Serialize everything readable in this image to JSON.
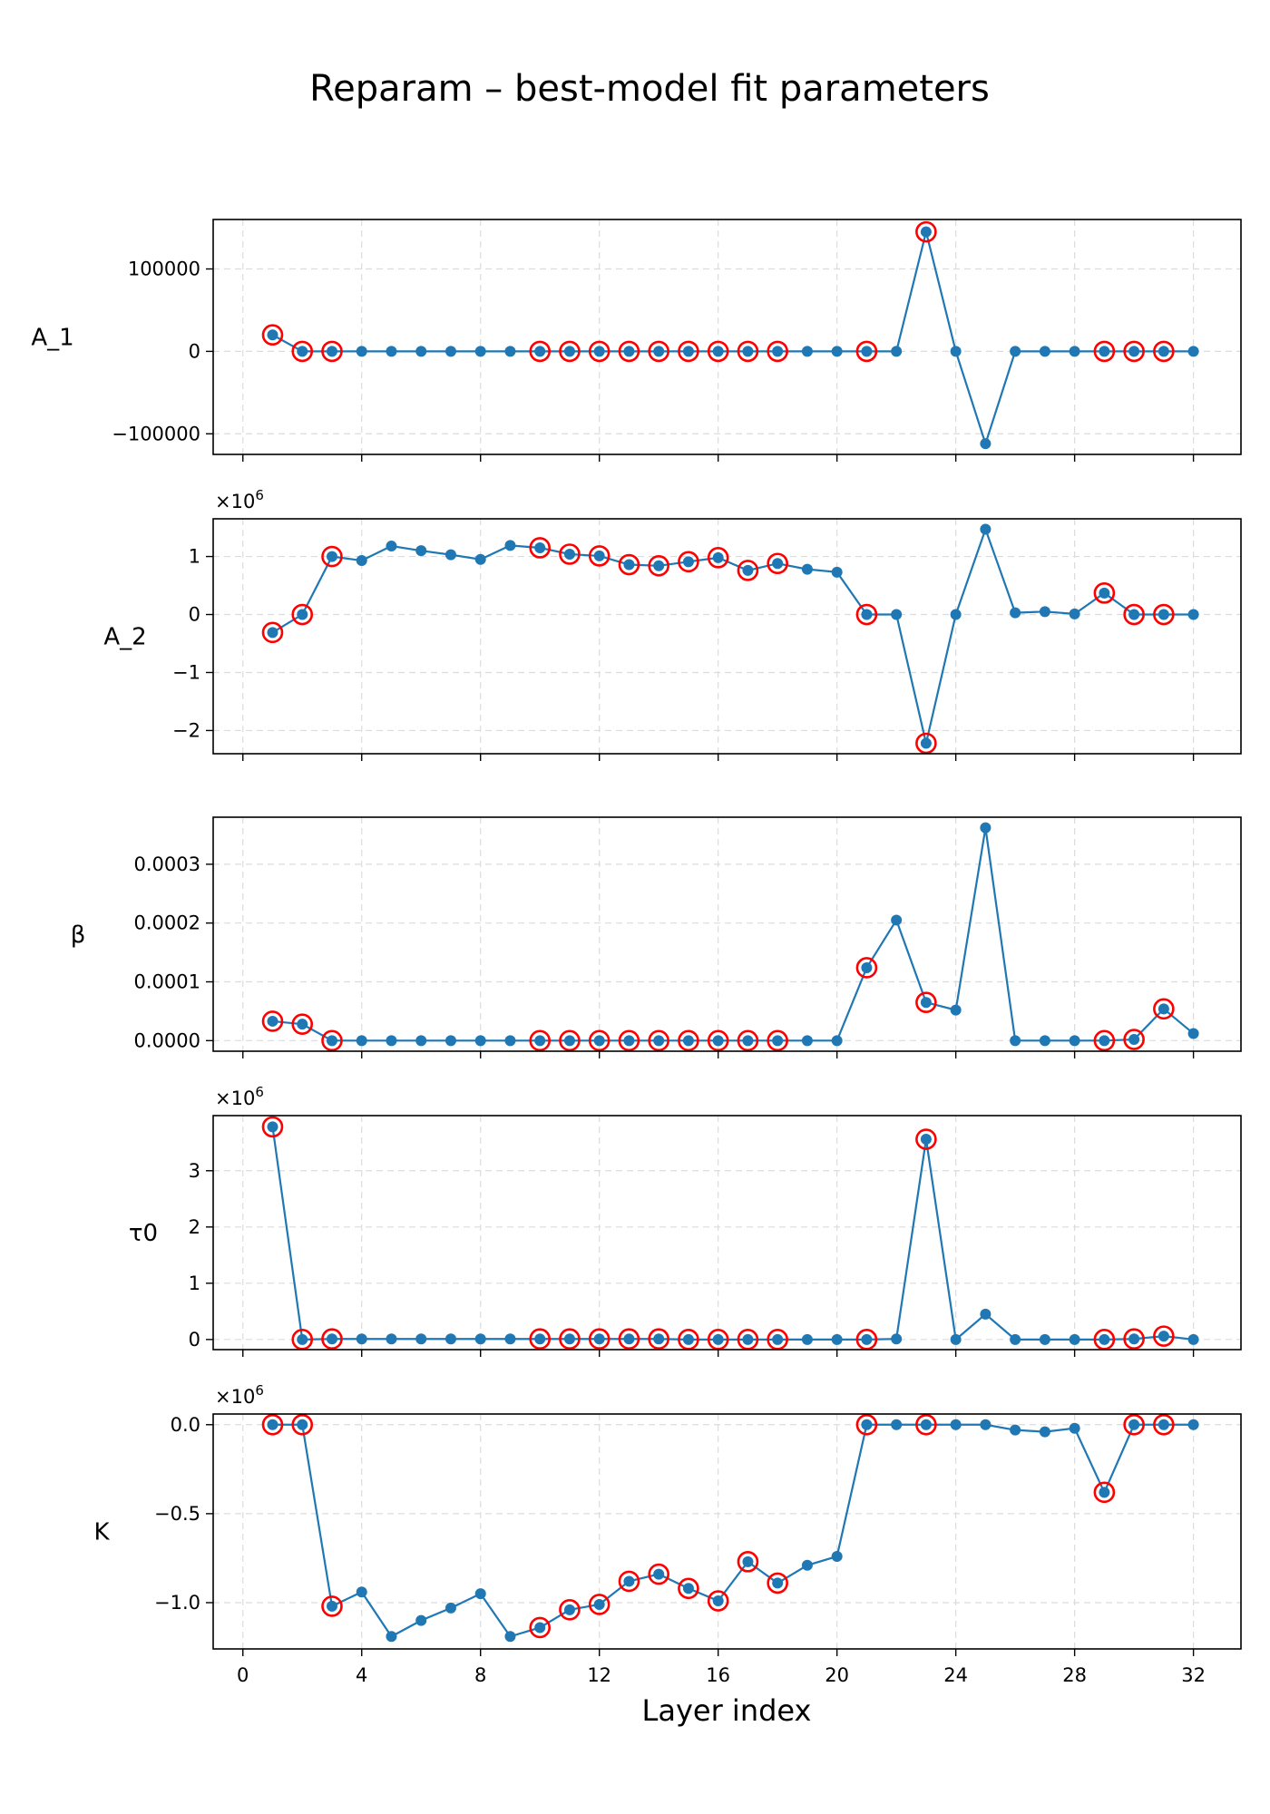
{
  "figure": {
    "title": "Reparam – best-model fit parameters",
    "xlabel": "Layer index"
  },
  "chart_data": [
    {
      "type": "line",
      "ylabel": "A_1",
      "offset_text": "",
      "x": [
        1,
        2,
        3,
        4,
        5,
        6,
        7,
        8,
        9,
        10,
        11,
        12,
        13,
        14,
        15,
        16,
        17,
        18,
        19,
        20,
        21,
        22,
        23,
        24,
        25,
        26,
        27,
        28,
        29,
        30,
        31,
        32
      ],
      "values": [
        20000,
        0,
        0,
        0,
        0,
        0,
        0,
        0,
        0,
        0,
        0,
        0,
        0,
        0,
        0,
        0,
        0,
        0,
        0,
        0,
        0,
        0,
        145000,
        0,
        -112000,
        0,
        0,
        0,
        0,
        0,
        0,
        0
      ],
      "highlighted_x": [
        1,
        2,
        3,
        10,
        11,
        12,
        13,
        14,
        15,
        16,
        17,
        18,
        21,
        23,
        29,
        30,
        31
      ],
      "ylim": [
        -125000,
        160000
      ],
      "yticks": [
        -100000,
        0,
        100000
      ],
      "ytick_labels": [
        "−100000",
        "0",
        "100000"
      ]
    },
    {
      "type": "line",
      "ylabel": "A_2",
      "offset_text": "×10^6",
      "x": [
        1,
        2,
        3,
        4,
        5,
        6,
        7,
        8,
        9,
        10,
        11,
        12,
        13,
        14,
        15,
        16,
        17,
        18,
        19,
        20,
        21,
        22,
        23,
        24,
        25,
        26,
        27,
        28,
        29,
        30,
        31,
        32
      ],
      "values": [
        -0.31,
        0.0,
        1.0,
        0.93,
        1.18,
        1.1,
        1.03,
        0.95,
        1.19,
        1.15,
        1.04,
        1.01,
        0.86,
        0.84,
        0.91,
        0.98,
        0.76,
        0.88,
        0.78,
        0.73,
        0.0,
        0.0,
        -2.22,
        0.0,
        1.47,
        0.03,
        0.05,
        0.01,
        0.37,
        0.0,
        0.0,
        0.0
      ],
      "highlighted_x": [
        1,
        2,
        3,
        10,
        11,
        12,
        13,
        14,
        15,
        16,
        17,
        18,
        21,
        23,
        29,
        30,
        31
      ],
      "ylim": [
        -2.4,
        1.65
      ],
      "yticks": [
        -2,
        -1,
        0,
        1
      ],
      "ytick_labels": [
        "−2",
        "−1",
        "0",
        "1"
      ]
    },
    {
      "type": "line",
      "ylabel": "β",
      "offset_text": "",
      "x": [
        1,
        2,
        3,
        4,
        5,
        6,
        7,
        8,
        9,
        10,
        11,
        12,
        13,
        14,
        15,
        16,
        17,
        18,
        19,
        20,
        21,
        22,
        23,
        24,
        25,
        26,
        27,
        28,
        29,
        30,
        31,
        32
      ],
      "values": [
        3.3e-05,
        2.8e-05,
        0.0,
        0.0,
        0.0,
        0.0,
        0.0,
        0.0,
        0.0,
        0.0,
        0.0,
        0.0,
        0.0,
        0.0,
        0.0,
        0.0,
        0.0,
        0.0,
        0.0,
        0.0,
        0.000124,
        0.000205,
        6.5e-05,
        5.2e-05,
        0.000362,
        0.0,
        0.0,
        0.0,
        0.0,
        2e-06,
        5.4e-05,
        1.2e-05
      ],
      "highlighted_x": [
        1,
        2,
        3,
        10,
        11,
        12,
        13,
        14,
        15,
        16,
        17,
        18,
        21,
        23,
        29,
        30,
        31
      ],
      "ylim": [
        -1.8e-05,
        0.00038
      ],
      "yticks": [
        0.0,
        0.0001,
        0.0002,
        0.0003
      ],
      "ytick_labels": [
        "0.0000",
        "0.0001",
        "0.0002",
        "0.0003"
      ]
    },
    {
      "type": "line",
      "ylabel": "τ0",
      "offset_text": "×10^6",
      "x": [
        1,
        2,
        3,
        4,
        5,
        6,
        7,
        8,
        9,
        10,
        11,
        12,
        13,
        14,
        15,
        16,
        17,
        18,
        19,
        20,
        21,
        22,
        23,
        24,
        25,
        26,
        27,
        28,
        29,
        30,
        31,
        32
      ],
      "values": [
        3.78,
        0.0,
        0.01,
        0.01,
        0.01,
        0.01,
        0.01,
        0.01,
        0.01,
        0.01,
        0.01,
        0.01,
        0.01,
        0.01,
        0.0,
        0.0,
        0.0,
        0.0,
        0.0,
        0.0,
        0.0,
        0.01,
        3.56,
        0.0,
        0.45,
        0.0,
        0.0,
        0.0,
        0.0,
        0.01,
        0.06,
        0.0
      ],
      "highlighted_x": [
        1,
        2,
        3,
        10,
        11,
        12,
        13,
        14,
        15,
        16,
        17,
        18,
        21,
        23,
        29,
        30,
        31
      ],
      "ylim": [
        -0.18,
        3.98
      ],
      "yticks": [
        0,
        1,
        2,
        3
      ],
      "ytick_labels": [
        "0",
        "1",
        "2",
        "3"
      ]
    },
    {
      "type": "line",
      "ylabel": "K",
      "offset_text": "×10^6",
      "x": [
        1,
        2,
        3,
        4,
        5,
        6,
        7,
        8,
        9,
        10,
        11,
        12,
        13,
        14,
        15,
        16,
        17,
        18,
        19,
        20,
        21,
        22,
        23,
        24,
        25,
        26,
        27,
        28,
        29,
        30,
        31,
        32
      ],
      "values": [
        0.0,
        0.0,
        -1.02,
        -0.94,
        -1.19,
        -1.1,
        -1.03,
        -0.95,
        -1.19,
        -1.14,
        -1.04,
        -1.01,
        -0.88,
        -0.84,
        -0.92,
        -0.99,
        -0.77,
        -0.89,
        -0.79,
        -0.74,
        0.0,
        0.0,
        0.0,
        0.0,
        0.0,
        -0.03,
        -0.04,
        -0.02,
        -0.38,
        0.0,
        0.0,
        0.0
      ],
      "highlighted_x": [
        1,
        2,
        3,
        10,
        11,
        12,
        13,
        14,
        15,
        16,
        17,
        18,
        21,
        23,
        29,
        30,
        31
      ],
      "ylim": [
        -1.26,
        0.06
      ],
      "yticks": [
        -1.0,
        -0.5,
        0.0
      ],
      "ytick_labels": [
        "−1.0",
        "−0.5",
        "0.0"
      ]
    }
  ],
  "x_axis": {
    "xlim": [
      -1.0,
      33.6
    ],
    "xticks": [
      0,
      4,
      8,
      12,
      16,
      20,
      24,
      28,
      32
    ],
    "xtick_labels": [
      "0",
      "4",
      "8",
      "12",
      "16",
      "20",
      "24",
      "28",
      "32"
    ]
  },
  "style": {
    "line_color": "#1f77b4",
    "highlight_color": "#ff0000",
    "grid": true
  }
}
